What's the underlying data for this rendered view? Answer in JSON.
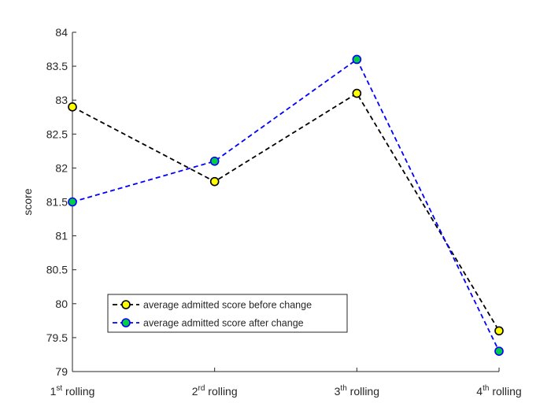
{
  "chart_data": {
    "type": "line",
    "categories": [
      {
        "main": "1",
        "sup": "st",
        "rest": " rolling"
      },
      {
        "main": "2",
        "sup": "rd",
        "rest": " rolling"
      },
      {
        "main": "3",
        "sup": "th",
        "rest": " rolling"
      },
      {
        "main": "4",
        "sup": "th",
        "rest": " rolling"
      }
    ],
    "ylabel": "score",
    "ylim": [
      79,
      84
    ],
    "yticks": [
      "79",
      "79.5",
      "80",
      "80.5",
      "81",
      "81.5",
      "82",
      "82.5",
      "83",
      "83.5",
      "84"
    ],
    "grid": false,
    "legend_position": "bottom-left",
    "series": [
      {
        "name": "average admitted score before change",
        "values": [
          82.9,
          81.8,
          83.1,
          79.6
        ],
        "line_color": "#000000",
        "marker_fill": "#ffff00",
        "line_style": "dashed"
      },
      {
        "name": "average admitted score after change",
        "values": [
          81.5,
          82.1,
          83.6,
          79.3
        ],
        "line_color": "#0000ff",
        "marker_fill": "#00cc44",
        "line_style": "dashed"
      }
    ]
  }
}
